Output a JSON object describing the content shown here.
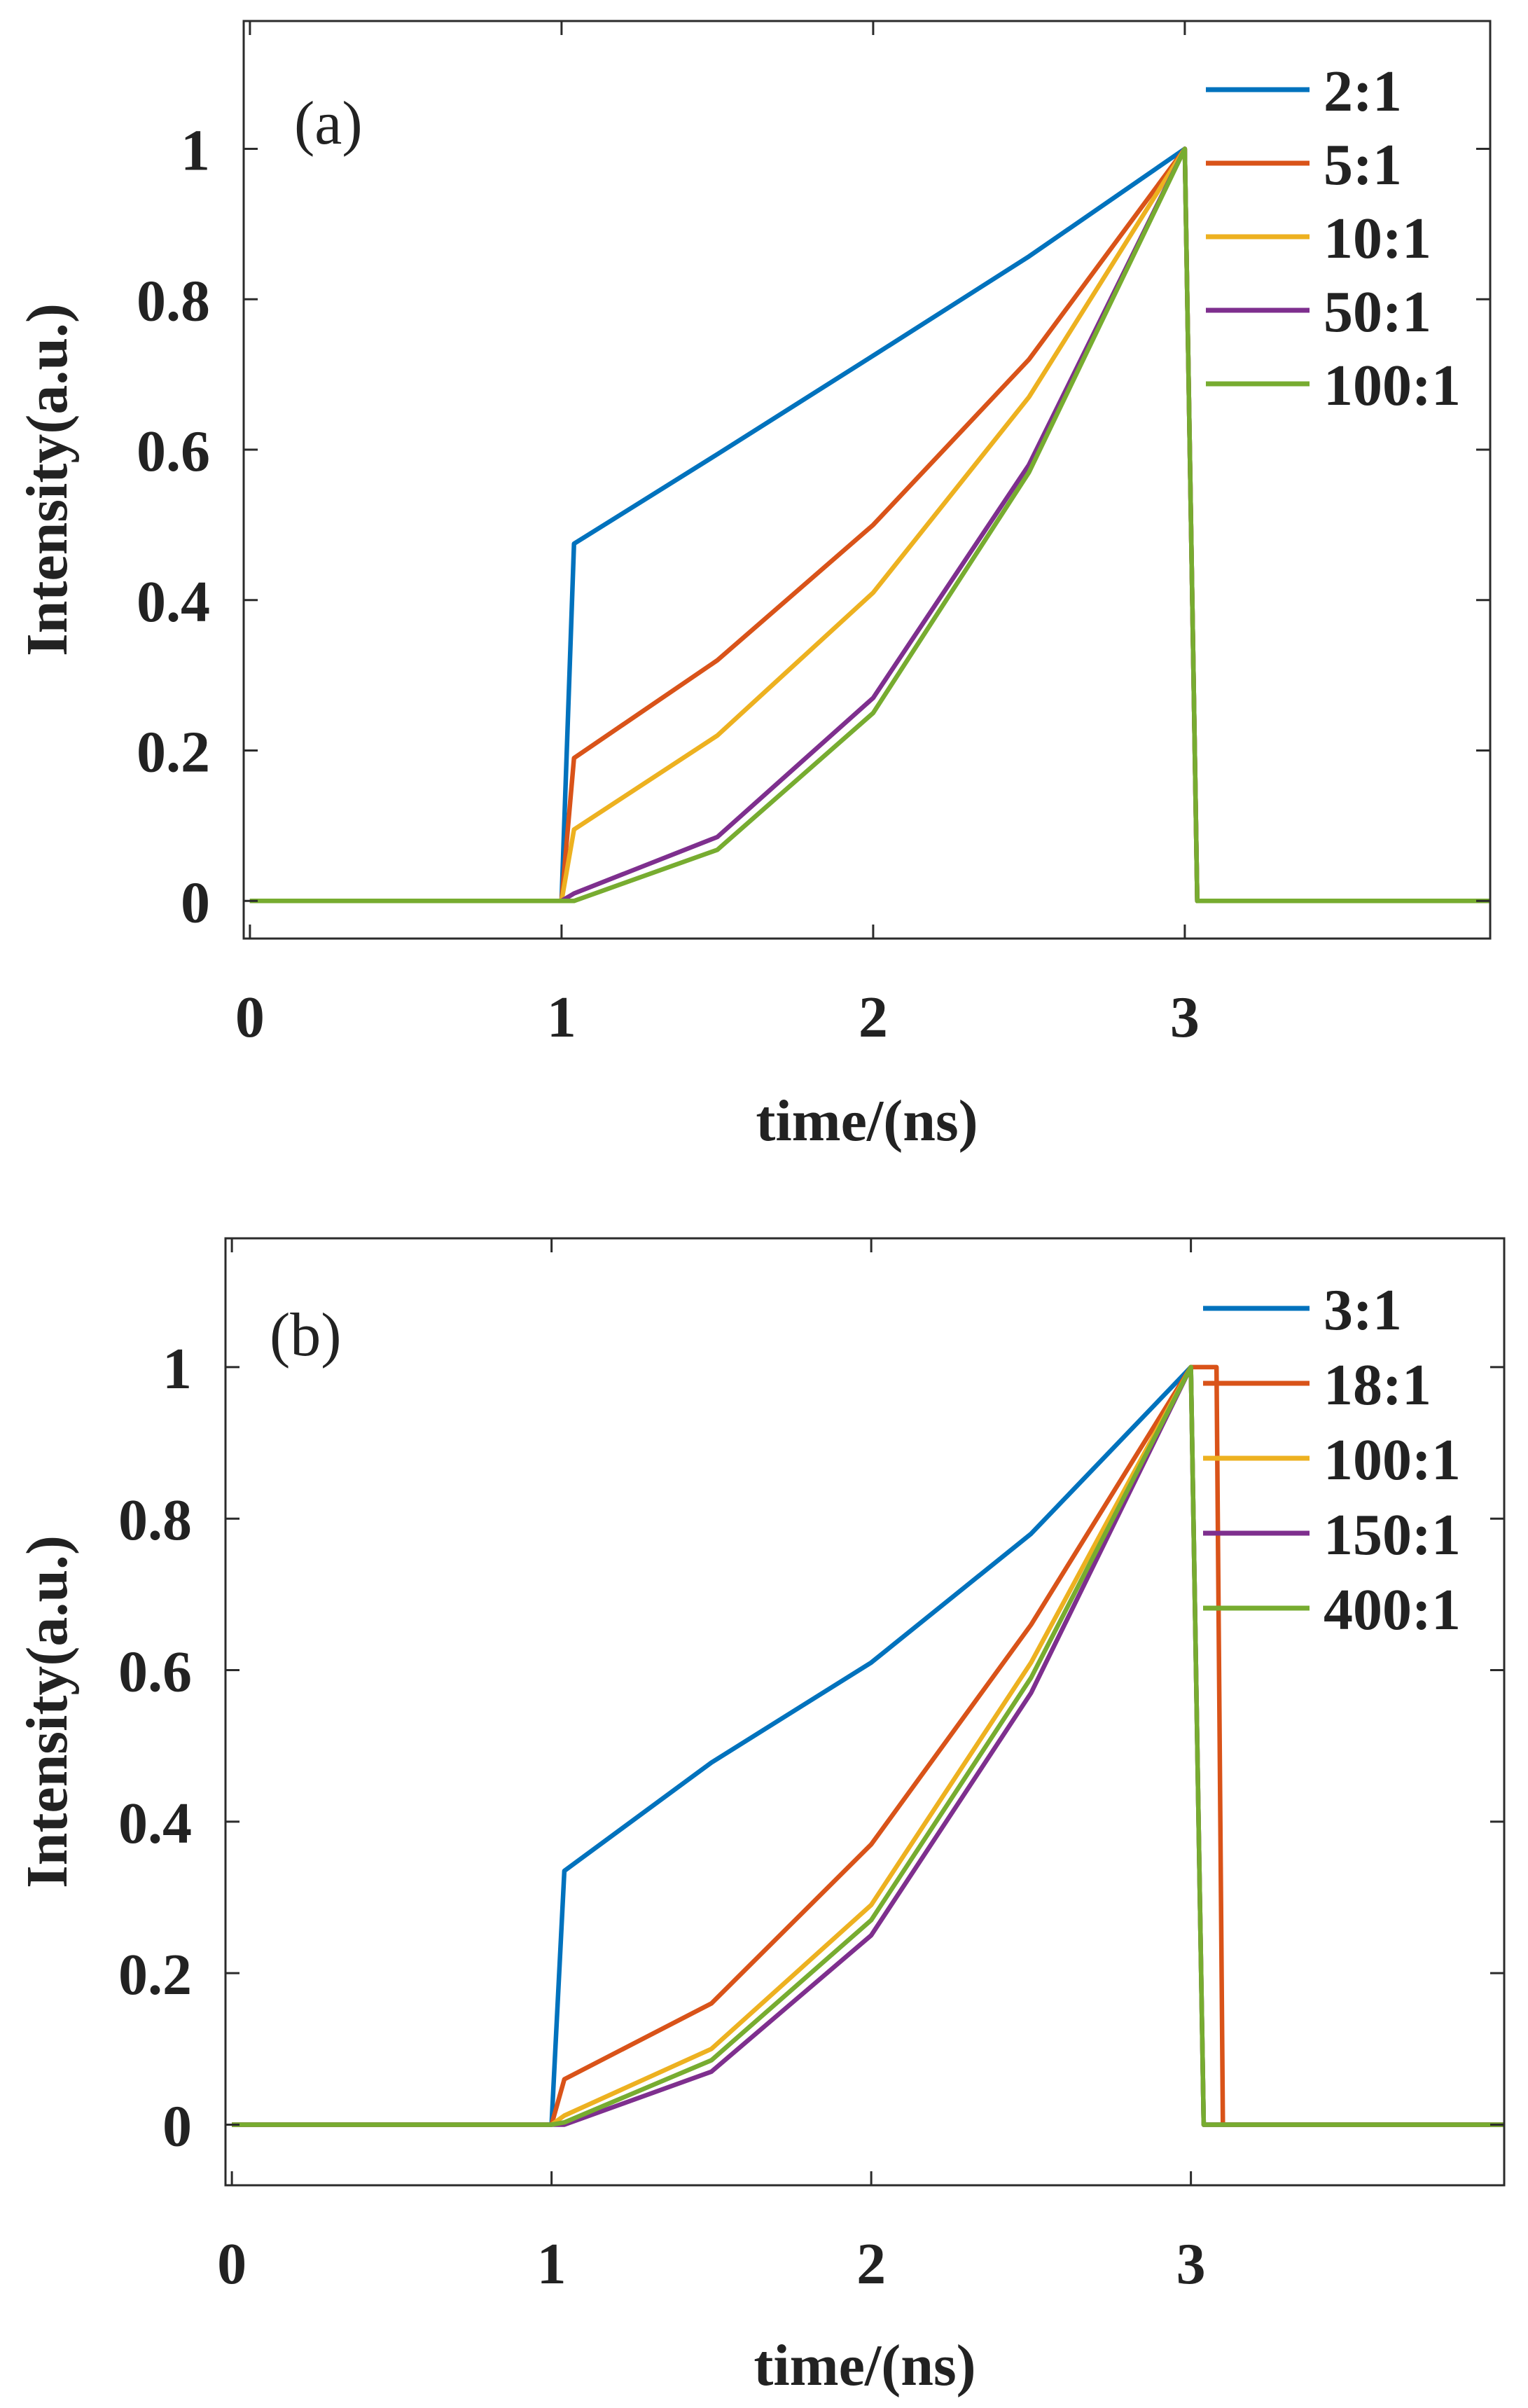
{
  "chart_data": [
    {
      "type": "line",
      "panel_label": "(a)",
      "xlabel": "time/(ns)",
      "ylabel": "Intensity(a.u.)",
      "xlim": [
        -0.02,
        3.98
      ],
      "ylim": [
        -0.05,
        1.17
      ],
      "xticks": [
        0,
        1,
        2,
        3
      ],
      "yticks": [
        0,
        0.2,
        0.4,
        0.6,
        0.8,
        1
      ],
      "xtick_labels": [
        "0",
        "1",
        "2",
        "3"
      ],
      "ytick_labels": [
        "0",
        "0.2",
        "0.4",
        "0.6",
        "0.8",
        "1"
      ],
      "legend_position": "top-right",
      "series": [
        {
          "name": "2:1",
          "color": "#0072BD",
          "x": [
            0,
            1,
            1.04,
            1.5,
            2,
            2.5,
            3,
            3.04,
            3.98
          ],
          "y": [
            0,
            0,
            0.475,
            0.594,
            0.725,
            0.857,
            1,
            0,
            0
          ]
        },
        {
          "name": "5:1",
          "color": "#D95319",
          "x": [
            0,
            1,
            1.04,
            1.5,
            2,
            2.5,
            3,
            3.04,
            3.98
          ],
          "y": [
            0,
            0,
            0.19,
            0.32,
            0.5,
            0.72,
            1,
            0,
            0
          ]
        },
        {
          "name": "10:1",
          "color": "#EDB120",
          "x": [
            0,
            1,
            1.04,
            1.5,
            2,
            2.5,
            3,
            3.04,
            3.98
          ],
          "y": [
            0,
            0,
            0.095,
            0.22,
            0.41,
            0.67,
            1,
            0,
            0
          ]
        },
        {
          "name": "50:1",
          "color": "#7E2F8E",
          "x": [
            0,
            1,
            1.04,
            1.5,
            2,
            2.5,
            3,
            3.04,
            3.98
          ],
          "y": [
            0,
            0,
            0.01,
            0.085,
            0.27,
            0.58,
            1,
            0,
            0
          ]
        },
        {
          "name": "100:1",
          "color": "#77AC30",
          "x": [
            0,
            1,
            1.04,
            1.5,
            2,
            2.5,
            3,
            3.04,
            3.98
          ],
          "y": [
            0,
            0,
            0,
            0.068,
            0.25,
            0.57,
            1,
            0,
            0
          ]
        }
      ]
    },
    {
      "type": "line",
      "panel_label": "(b)",
      "xlabel": "time/(ns)",
      "ylabel": "Intensity(a.u.)",
      "xlim": [
        -0.02,
        3.98
      ],
      "ylim": [
        -0.08,
        1.17
      ],
      "xticks": [
        0,
        1,
        2,
        3
      ],
      "yticks": [
        0,
        0.2,
        0.4,
        0.6,
        0.8,
        1
      ],
      "xtick_labels": [
        "0",
        "1",
        "2",
        "3"
      ],
      "ytick_labels": [
        "0",
        "0.2",
        "0.4",
        "0.6",
        "0.8",
        "1"
      ],
      "legend_position": "top-right",
      "series": [
        {
          "name": "3:1",
          "color": "#0072BD",
          "x": [
            0,
            1,
            1.04,
            1.5,
            2,
            2.5,
            3,
            3.04,
            3.98
          ],
          "y": [
            0,
            0,
            0.335,
            0.478,
            0.61,
            0.78,
            1,
            0,
            0
          ]
        },
        {
          "name": "18:1",
          "color": "#D95319",
          "x": [
            0,
            1,
            1.04,
            1.5,
            2,
            2.5,
            3,
            3.04,
            3.08,
            3.1,
            3.98
          ],
          "y": [
            0,
            0,
            0.06,
            0.16,
            0.37,
            0.66,
            1,
            1,
            1,
            0,
            0
          ]
        },
        {
          "name": "100:1",
          "color": "#EDB120",
          "x": [
            0,
            1,
            1.04,
            1.5,
            2,
            2.5,
            3,
            3.04,
            3.98
          ],
          "y": [
            0,
            0,
            0.012,
            0.1,
            0.29,
            0.61,
            1,
            0,
            0
          ]
        },
        {
          "name": "150:1",
          "color": "#7E2F8E",
          "x": [
            0,
            1,
            1.04,
            1.5,
            2,
            2.5,
            3,
            3.04,
            3.98
          ],
          "y": [
            0,
            0,
            0,
            0.07,
            0.25,
            0.57,
            1,
            0,
            0
          ]
        },
        {
          "name": "400:1",
          "color": "#77AC30",
          "x": [
            0,
            1,
            1.04,
            1.5,
            2,
            2.5,
            3,
            3.04,
            3.98
          ],
          "y": [
            0,
            0,
            0.003,
            0.085,
            0.27,
            0.59,
            1,
            0,
            0
          ]
        }
      ]
    }
  ]
}
